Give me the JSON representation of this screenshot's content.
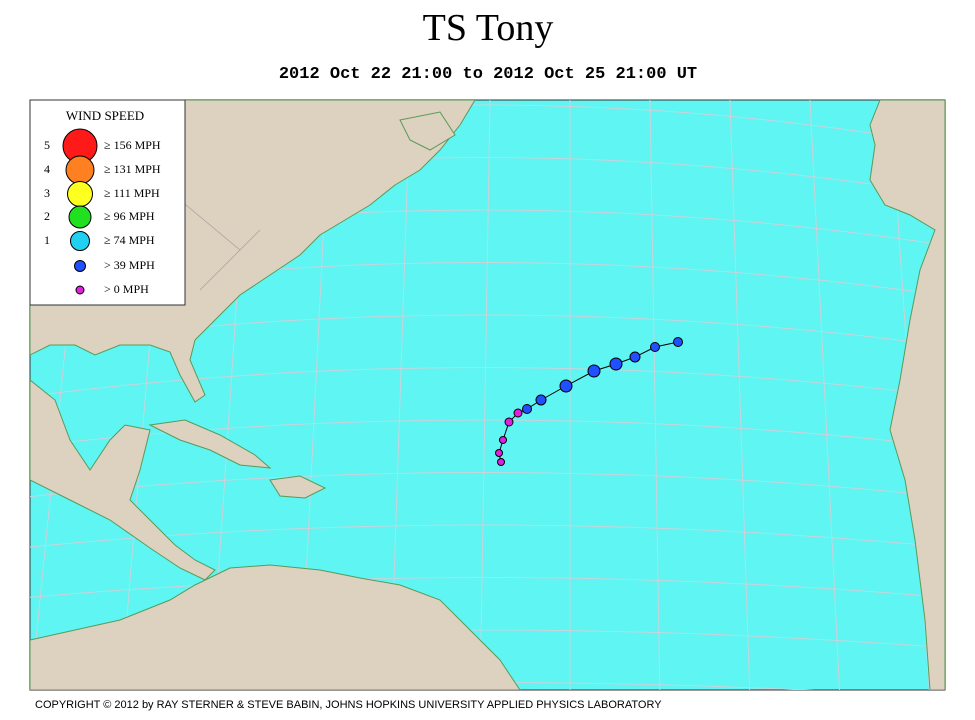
{
  "header": {
    "title": "TS Tony",
    "subtitle": "2012 Oct 22 21:00 to 2012 Oct 25 21:00 UT"
  },
  "legend": {
    "title": "WIND SPEED",
    "items": [
      {
        "category": "5",
        "label": "≥ 156 MPH",
        "color": "#ff1a1a"
      },
      {
        "category": "4",
        "label": "≥ 131 MPH",
        "color": "#ff8020"
      },
      {
        "category": "3",
        "label": "≥ 111 MPH",
        "color": "#ffff20"
      },
      {
        "category": "2",
        "label": "≥ 96 MPH",
        "color": "#20e020"
      },
      {
        "category": "1",
        "label": "≥ 74 MPH",
        "color": "#20d0f0"
      },
      {
        "label": "> 39 MPH",
        "color": "#2050ff"
      },
      {
        "label": "> 0 MPH",
        "color": "#e020e0"
      }
    ]
  },
  "footer": {
    "copyright": "COPYRIGHT © 2012 by RAY STERNER & STEVE BABIN, JOHNS HOPKINS UNIVERSITY APPLIED PHYSICS LABORATORY"
  }
}
